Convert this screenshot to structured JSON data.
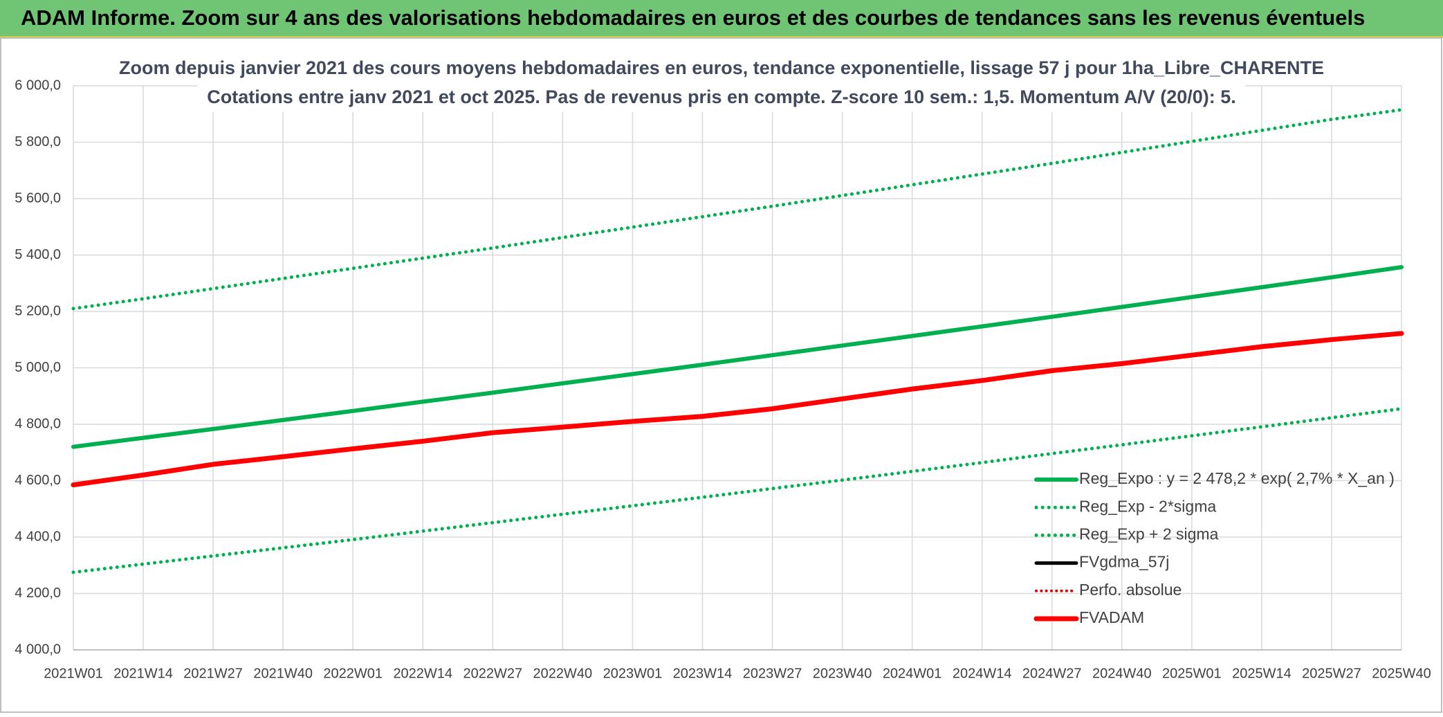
{
  "banner": "ADAM Informe. Zoom sur 4 ans des valorisations hebdomadaires en euros et des courbes de tendances sans les revenus éventuels",
  "chart_data": {
    "type": "line",
    "title": "Zoom depuis janvier 2021 des cours moyens hebdomadaires en euros, tendance exponentielle, lissage 57 j pour 1ha_Libre_CHARENTE",
    "subtitle": "Cotations entre janv 2021 et oct 2025. Pas de revenus pris en compte. Z-score 10 sem.: 1,5. Momentum A/V (20/0): 5.",
    "categories": [
      "2021W01",
      "2021W14",
      "2021W27",
      "2021W40",
      "2022W01",
      "2022W14",
      "2022W27",
      "2022W40",
      "2023W01",
      "2023W14",
      "2023W27",
      "2023W40",
      "2024W01",
      "2024W14",
      "2024W27",
      "2024W40",
      "2025W01",
      "2025W14",
      "2025W27",
      "2025W40"
    ],
    "ylim": [
      4000,
      6000
    ],
    "yticks": [
      {
        "value": 4000,
        "label": "4 000,0"
      },
      {
        "value": 4200,
        "label": "4 200,0"
      },
      {
        "value": 4400,
        "label": "4 400,0"
      },
      {
        "value": 4600,
        "label": "4 600,0"
      },
      {
        "value": 4800,
        "label": "4 800,0"
      },
      {
        "value": 5000,
        "label": "5 000,0"
      },
      {
        "value": 5200,
        "label": "5 200,0"
      },
      {
        "value": 5400,
        "label": "5 400,0"
      },
      {
        "value": 5600,
        "label": "5 600,0"
      },
      {
        "value": 5800,
        "label": "5 800,0"
      },
      {
        "value": 6000,
        "label": "6 000,0"
      }
    ],
    "grid": true,
    "legend": "lower right",
    "series": [
      {
        "name": "Reg_Expo : y = 2 478,2 * exp( 2,7% *  X_an )",
        "color": "#00b050",
        "style": "solid",
        "line_width": 6,
        "values": [
          4720,
          4752,
          4783,
          4815,
          4847,
          4880,
          4912,
          4945,
          4978,
          5011,
          5045,
          5079,
          5113,
          5147,
          5181,
          5216,
          5251,
          5286,
          5321,
          5357
        ]
      },
      {
        "name": "Reg_Exp - 2*sigma",
        "color": "#00b050",
        "style": "dotted",
        "line_width": 5,
        "values": [
          4275,
          4304,
          4333,
          4362,
          4391,
          4421,
          4451,
          4481,
          4511,
          4541,
          4572,
          4602,
          4633,
          4664,
          4696,
          4727,
          4759,
          4791,
          4823,
          4855
        ]
      },
      {
        "name": "Reg_Exp + 2 sigma",
        "color": "#00b050",
        "style": "dotted",
        "line_width": 5,
        "values": [
          5210,
          5245,
          5281,
          5317,
          5353,
          5389,
          5425,
          5462,
          5499,
          5536,
          5573,
          5611,
          5649,
          5687,
          5725,
          5764,
          5803,
          5842,
          5881,
          5915
        ]
      },
      {
        "name": "FVgdma_57j",
        "color": "#000000",
        "style": "solid",
        "line_width": 5,
        "values": [
          null,
          null,
          null,
          null,
          null,
          null,
          null,
          null,
          null,
          null,
          null,
          null,
          null,
          null,
          null,
          null,
          null,
          null,
          null,
          null
        ]
      },
      {
        "name": "Perfo. absolue",
        "color": "#e00000",
        "style": "dotted",
        "line_width": 4,
        "values": [
          null,
          null,
          null,
          null,
          null,
          null,
          null,
          null,
          null,
          null,
          null,
          null,
          null,
          null,
          null,
          null,
          null,
          null,
          null,
          null
        ]
      },
      {
        "name": "FVADAM",
        "color": "#ff0000",
        "style": "solid",
        "line_width": 7,
        "values": [
          4585,
          4620,
          4658,
          4685,
          4713,
          4740,
          4770,
          4790,
          4810,
          4828,
          4855,
          4890,
          4925,
          4955,
          4990,
          5015,
          5045,
          5075,
          5100,
          5122
        ]
      }
    ]
  }
}
